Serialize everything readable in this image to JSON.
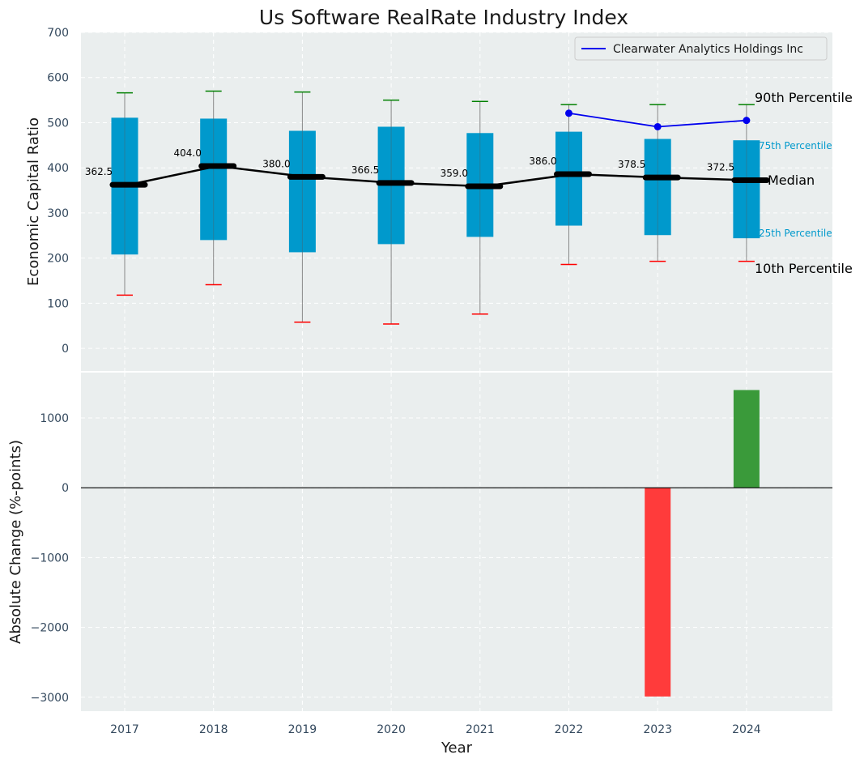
{
  "chart_data": [
    {
      "type": "box",
      "title": "Us Software RealRate Industry Index",
      "ylabel": "Economic Capital Ratio",
      "ylim": [
        -50,
        700
      ],
      "yticks": [
        0,
        100,
        200,
        300,
        400,
        500,
        600,
        700
      ],
      "grid": true,
      "categories": [
        "2017",
        "2018",
        "2019",
        "2020",
        "2021",
        "2022",
        "2023",
        "2024"
      ],
      "boxes": [
        {
          "year": "2017",
          "p10": 118,
          "p25": 208,
          "median": 362.5,
          "p75": 511,
          "p90": 566
        },
        {
          "year": "2018",
          "p10": 141,
          "p25": 240,
          "median": 404.0,
          "p75": 509,
          "p90": 570
        },
        {
          "year": "2019",
          "p10": 58,
          "p25": 213,
          "median": 380.0,
          "p75": 482,
          "p90": 568
        },
        {
          "year": "2020",
          "p10": 54,
          "p25": 231,
          "median": 366.5,
          "p75": 491,
          "p90": 550
        },
        {
          "year": "2021",
          "p10": 76,
          "p25": 247,
          "median": 359.0,
          "p75": 477,
          "p90": 547
        },
        {
          "year": "2022",
          "p10": 186,
          "p25": 272,
          "median": 386.0,
          "p75": 480,
          "p90": 540
        },
        {
          "year": "2023",
          "p10": 193,
          "p25": 251,
          "median": 378.5,
          "p75": 464,
          "p90": 540
        },
        {
          "year": "2024",
          "p10": 193,
          "p25": 244,
          "median": 372.5,
          "p75": 461,
          "p90": 540
        }
      ],
      "median_labels": [
        "362.5",
        "404.0",
        "380.0",
        "366.5",
        "359.0",
        "386.0",
        "378.5",
        "372.5"
      ],
      "series": [
        {
          "name": "Clearwater Analytics Holdings Inc",
          "x": [
            "2022",
            "2023",
            "2024"
          ],
          "values": [
            521,
            491,
            505
          ],
          "color": "#0000ee"
        }
      ],
      "legend": {
        "position": "top-right",
        "entries": [
          "Clearwater Analytics Holdings Inc"
        ]
      },
      "annotations": {
        "p90": "90th Percentile",
        "p75": "75th Percentile",
        "median": "Median",
        "p25": "25th Percentile",
        "p10": "10th Percentile"
      },
      "colors": {
        "box": "#0099cc",
        "median": "#000000",
        "whisker_top": "#008000",
        "whisker_bottom": "#ff0000",
        "background": "#eaeeee"
      }
    },
    {
      "type": "bar",
      "ylabel": "Absolute Change (%-points)",
      "xlabel": "Year",
      "ylim": [
        -3200,
        1650
      ],
      "yticks": [
        -3000,
        -2000,
        -1000,
        0,
        1000
      ],
      "ytick_labels": [
        "−3000",
        "−2000",
        "−1000",
        "0",
        "1000"
      ],
      "categories": [
        "2017",
        "2018",
        "2019",
        "2020",
        "2021",
        "2022",
        "2023",
        "2024"
      ],
      "bars": [
        {
          "year": "2023",
          "value": -2990,
          "color": "#ff3b3b"
        },
        {
          "year": "2024",
          "value": 1400,
          "color": "#3a9a3a"
        }
      ],
      "grid": true
    }
  ]
}
